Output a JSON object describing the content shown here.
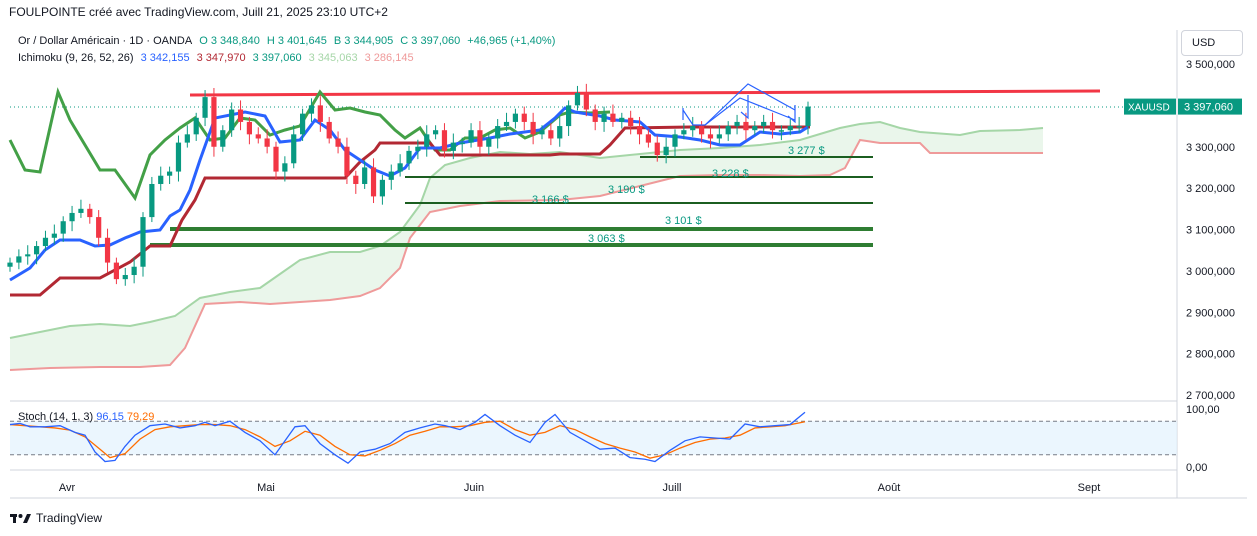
{
  "header": {
    "title": "FOULPOINTE créé avec TradingView.com, Juill 21, 2025 23:10 UTC+2"
  },
  "symbol": {
    "name": "Or / Dollar Américain · 1D · OANDA",
    "o": "O 3 348,840",
    "h": "H 3 401,645",
    "l": "B 3 344,905",
    "c": "C 3 397,060",
    "chg": "+46,965 (+1,40%)"
  },
  "ichimoku": {
    "label": "Ichimoku (9, 26, 52, 26)",
    "tenkan": "3 342,155",
    "kijun": "3 347,970",
    "chikou": "3 397,060",
    "span_a": "3 345,063",
    "span_b": "3 286,145"
  },
  "currency_button": "USD",
  "price_tag": {
    "symbol": "XAUUSD",
    "value": "3 397,060"
  },
  "stoch": {
    "label": "Stoch (14, 1, 3)",
    "k": "96,15",
    "d": "79,29"
  },
  "footer": {
    "brand": "TradingView"
  },
  "colors": {
    "up": "#089981",
    "down": "#f23645",
    "tenkan": "#2962ff",
    "kijun": "#b22833",
    "chikou": "#43a047",
    "span_a": "#a5d6a7",
    "span_b": "#ef9a9a",
    "resistance": "#f23645",
    "support_dark": "#2e7d32",
    "support_mid": "#1b5e20",
    "stoch_k": "#2962ff",
    "stoch_d": "#ff6d00"
  },
  "chart_data": {
    "type": "candlestick",
    "price_axis": {
      "ticks": [
        3500000,
        3400000,
        3300000,
        3200000,
        3100000,
        3000000,
        2900000,
        2800000,
        2700000
      ],
      "tick_labels": [
        "3 500,000",
        "3 400,000",
        "3 300,000",
        "3 200,000",
        "3 100,000",
        "3 000,000",
        "2 900,000",
        "2 800,000",
        "2 700,000"
      ]
    },
    "stoch_axis": {
      "tick_labels": [
        "100,00",
        "0,00"
      ],
      "bands": [
        80,
        20
      ]
    },
    "time_axis": {
      "labels": [
        "Avr",
        "Mai",
        "Juin",
        "Juill",
        "Août",
        "Sept"
      ]
    },
    "resistance": {
      "value": 3438000
    },
    "supports": [
      {
        "label": "3 277 $",
        "value": 3277000,
        "end_day": 96
      },
      {
        "label": "3 228 $",
        "value": 3228000,
        "end_day": 96
      },
      {
        "label": "3 190 $",
        "value": 3190000,
        "end_day": 96
      },
      {
        "label": "3 166 $",
        "value": 3166000,
        "end_day": 96
      },
      {
        "label": "3 101 $",
        "value": 3101000,
        "end_day": 96
      },
      {
        "label": "3 063 $",
        "value": 3063000,
        "end_day": 96
      }
    ],
    "candles_close": [
      3020000,
      3035000,
      3040000,
      3060000,
      3080000,
      3090000,
      3120000,
      3140000,
      3150000,
      3130000,
      3080000,
      3020000,
      2980000,
      2990000,
      3010000,
      3130000,
      3210000,
      3230000,
      3240000,
      3310000,
      3330000,
      3370000,
      3420000,
      3300000,
      3340000,
      3390000,
      3360000,
      3330000,
      3320000,
      3300000,
      3240000,
      3260000,
      3330000,
      3380000,
      3400000,
      3360000,
      3320000,
      3300000,
      3230000,
      3210000,
      3250000,
      3180000,
      3220000,
      3240000,
      3260000,
      3290000,
      3300000,
      3330000,
      3340000,
      3290000,
      3310000,
      3310000,
      3340000,
      3300000,
      3320000,
      3350000,
      3360000,
      3380000,
      3360000,
      3330000,
      3340000,
      3320000,
      3350000,
      3400000,
      3430000,
      3390000,
      3360000,
      3380000,
      3360000,
      3370000,
      3350000,
      3330000,
      3310000,
      3280000,
      3300000,
      3330000,
      3340000,
      3350000,
      3330000,
      3320000,
      3330000,
      3350000,
      3360000,
      3340000,
      3350000,
      3360000,
      3340000,
      3340000,
      3350000,
      3350000,
      3397060
    ]
  }
}
